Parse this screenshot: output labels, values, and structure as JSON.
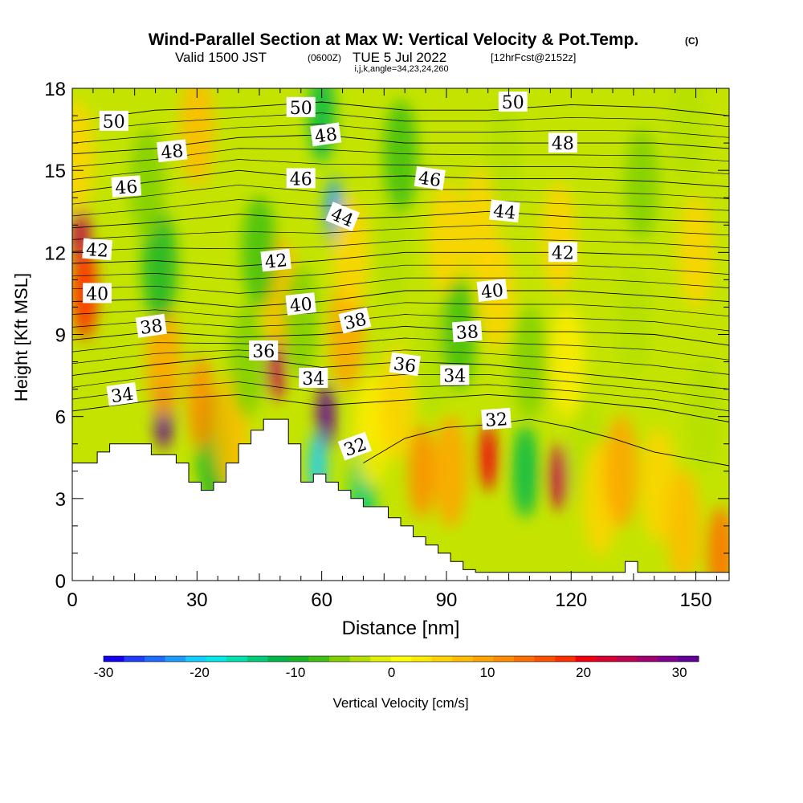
{
  "header": {
    "title": "Wind-Parallel Section at Max W: Vertical Velocity & Pot.Temp.",
    "copyright": "(C)",
    "valid_prefix": "Valid 1500 JST",
    "valid_utc": "(0600Z)",
    "valid_date": "TUE 5 Jul 2022",
    "forecast": "[12hrFcst@2152z]",
    "grid_info": "i,j,k,angle=34,23,24,260"
  },
  "chart_data": {
    "type": "heatmap",
    "xlabel": "Distance [nm]",
    "ylabel": "Height [Kft MSL]",
    "xlim": [
      0,
      158
    ],
    "ylim": [
      0,
      18
    ],
    "xticks": [
      0,
      30,
      60,
      90,
      120,
      150
    ],
    "yticks": [
      0,
      3,
      6,
      9,
      12,
      15,
      18
    ],
    "colorbar": {
      "label": "Vertical Velocity [cm/s]",
      "min": -30,
      "max": 32,
      "ticks": [
        -30,
        -20,
        -10,
        0,
        10,
        20,
        30
      ],
      "colors": [
        "#1400f0",
        "#1f3cff",
        "#1e6cff",
        "#1c9cff",
        "#14ccff",
        "#00e8e8",
        "#00e0b0",
        "#00cc7a",
        "#00b84a",
        "#18b428",
        "#40c010",
        "#80d000",
        "#b4e000",
        "#e0f000",
        "#ffff00",
        "#ffec00",
        "#ffd400",
        "#ffbc00",
        "#ffa400",
        "#ff8c00",
        "#ff6e00",
        "#ff5000",
        "#ff3000",
        "#f00010",
        "#d80030",
        "#c00050",
        "#a00070",
        "#800090",
        "#600098"
      ]
    },
    "velocity_cells": [
      {
        "x": 2,
        "y": 12.5,
        "w": 25
      },
      {
        "x": 3,
        "y": 10.5,
        "w": 18
      },
      {
        "x": 1,
        "y": 15.5,
        "w": 5
      },
      {
        "x": 22,
        "y": 6.0,
        "w": 30
      },
      {
        "x": 22,
        "y": 8.0,
        "w": 10
      },
      {
        "x": 21,
        "y": 11.5,
        "w": -10
      },
      {
        "x": 18,
        "y": 14.5,
        "w": -6
      },
      {
        "x": 30,
        "y": 16.5,
        "w": 8
      },
      {
        "x": 34,
        "y": 4.8,
        "w": -10
      },
      {
        "x": 31,
        "y": 6.5,
        "w": 12
      },
      {
        "x": 38,
        "y": 5.5,
        "w": 8
      },
      {
        "x": 42,
        "y": 8.0,
        "w": -6
      },
      {
        "x": 49,
        "y": 7.8,
        "w": 25
      },
      {
        "x": 50,
        "y": 10.5,
        "w": 8
      },
      {
        "x": 45,
        "y": 12.0,
        "w": -8
      },
      {
        "x": 55,
        "y": 9.5,
        "w": -5
      },
      {
        "x": 61,
        "y": 6.0,
        "w": 32
      },
      {
        "x": 59,
        "y": 4.2,
        "w": -20
      },
      {
        "x": 63,
        "y": 13.5,
        "w": -22
      },
      {
        "x": 60,
        "y": 17.0,
        "w": -12
      },
      {
        "x": 66,
        "y": 9.0,
        "w": 10
      },
      {
        "x": 67,
        "y": 12.0,
        "w": 6
      },
      {
        "x": 70,
        "y": 3.5,
        "w": -15
      },
      {
        "x": 72,
        "y": 5.5,
        "w": 4
      },
      {
        "x": 78,
        "y": 6.5,
        "w": 6
      },
      {
        "x": 77,
        "y": 12.0,
        "w": -4
      },
      {
        "x": 79,
        "y": 15.5,
        "w": -8
      },
      {
        "x": 84,
        "y": 4.0,
        "w": 12
      },
      {
        "x": 87,
        "y": 8.0,
        "w": -4
      },
      {
        "x": 91,
        "y": 4.0,
        "w": 10
      },
      {
        "x": 90,
        "y": 12.5,
        "w": 6
      },
      {
        "x": 93,
        "y": 9.0,
        "w": -8
      },
      {
        "x": 100,
        "y": 4.5,
        "w": 20
      },
      {
        "x": 102,
        "y": 10.5,
        "w": 6
      },
      {
        "x": 98,
        "y": 13.0,
        "w": 5
      },
      {
        "x": 104,
        "y": 15.5,
        "w": -4
      },
      {
        "x": 109,
        "y": 4.0,
        "w": -12
      },
      {
        "x": 110,
        "y": 8.0,
        "w": -6
      },
      {
        "x": 117,
        "y": 3.8,
        "w": 24
      },
      {
        "x": 117,
        "y": 12.5,
        "w": 5
      },
      {
        "x": 119,
        "y": 8.0,
        "w": 4
      },
      {
        "x": 124,
        "y": 4.5,
        "w": -4
      },
      {
        "x": 127,
        "y": 3.0,
        "w": 6
      },
      {
        "x": 132,
        "y": 4.0,
        "w": 9
      },
      {
        "x": 135,
        "y": 9.5,
        "w": -4
      },
      {
        "x": 137,
        "y": 14.5,
        "w": -6
      },
      {
        "x": 141,
        "y": 3.5,
        "w": 5
      },
      {
        "x": 147,
        "y": 2.0,
        "w": 7
      },
      {
        "x": 150,
        "y": 12.0,
        "w": 6
      },
      {
        "x": 152,
        "y": 6.0,
        "w": -4
      },
      {
        "x": 156,
        "y": 1.0,
        "w": 14
      },
      {
        "x": 148,
        "y": 16.5,
        "w": -3
      }
    ],
    "terrain": {
      "x": [
        0,
        6,
        6,
        9,
        9,
        19,
        19,
        25,
        25,
        28,
        28,
        31,
        31,
        34,
        34,
        37,
        37,
        40,
        40,
        43,
        43,
        46,
        46,
        52,
        52,
        55,
        55,
        58,
        58,
        61,
        61,
        64,
        64,
        67,
        67,
        70,
        70,
        73,
        73,
        76,
        76,
        79,
        79,
        82,
        82,
        85,
        85,
        88,
        88,
        91,
        91,
        94,
        94,
        97,
        97,
        100,
        100,
        103,
        103,
        106,
        106,
        109,
        109,
        112,
        112,
        115,
        115,
        118,
        118,
        121,
        121,
        124,
        124,
        127,
        127,
        130,
        130,
        133,
        133,
        136,
        136,
        139,
        139,
        158
      ],
      "y": [
        4.3,
        4.3,
        4.7,
        4.7,
        5.0,
        5.0,
        4.6,
        4.6,
        4.3,
        4.3,
        3.6,
        3.6,
        3.3,
        3.3,
        3.6,
        3.6,
        4.3,
        4.3,
        5.0,
        5.0,
        5.5,
        5.5,
        5.9,
        5.9,
        5.0,
        5.0,
        3.6,
        3.6,
        3.9,
        3.9,
        3.6,
        3.6,
        3.3,
        3.3,
        3.0,
        3.0,
        2.7,
        2.7,
        2.7,
        2.7,
        2.3,
        2.3,
        2.0,
        2.0,
        1.6,
        1.6,
        1.3,
        1.3,
        1.0,
        1.0,
        0.7,
        0.7,
        0.4,
        0.4,
        0.3,
        0.3,
        0.3,
        0.3,
        0.3,
        0.3,
        0.3,
        0.3,
        0.3,
        0.3,
        0.3,
        0.3,
        0.3,
        0.3,
        0.3,
        0.3,
        0.3,
        0.3,
        0.3,
        0.3,
        0.3,
        0.3,
        0.3,
        0.3,
        0.7,
        0.7,
        0.3,
        0.3,
        0.3,
        0.3
      ]
    },
    "isentropes": [
      {
        "label": "50",
        "x": [
          0,
          20,
          40,
          60,
          80,
          100,
          120,
          140,
          158
        ],
        "y": [
          16.8,
          17.2,
          17.3,
          17.5,
          17.2,
          17.2,
          17.4,
          17.3,
          17.0
        ]
      },
      {
        "label": "48",
        "x": [
          0,
          20,
          40,
          60,
          80,
          100,
          120,
          140,
          158
        ],
        "y": [
          15.6,
          15.8,
          16.2,
          16.3,
          16.0,
          16.0,
          16.0,
          16.0,
          15.8
        ]
      },
      {
        "label": "46",
        "x": [
          0,
          20,
          40,
          60,
          80,
          100,
          120,
          140,
          158
        ],
        "y": [
          14.2,
          14.6,
          15.0,
          14.7,
          14.8,
          14.7,
          14.7,
          14.6,
          14.4
        ]
      },
      {
        "label": "44",
        "x": [
          0,
          20,
          40,
          60,
          80,
          100,
          120,
          140,
          158
        ],
        "y": [
          12.9,
          13.1,
          13.4,
          13.2,
          13.3,
          13.5,
          13.3,
          13.2,
          13.1
        ]
      },
      {
        "label": "42",
        "x": [
          0,
          20,
          40,
          60,
          80,
          100,
          120,
          140,
          158
        ],
        "y": [
          11.6,
          11.7,
          11.5,
          11.7,
          12.0,
          12.0,
          12.0,
          11.9,
          11.7
        ]
      },
      {
        "label": "40",
        "x": [
          0,
          20,
          40,
          60,
          80,
          100,
          120,
          140,
          158
        ],
        "y": [
          10.2,
          10.3,
          10.0,
          10.2,
          10.6,
          10.6,
          10.6,
          10.4,
          10.2
        ]
      },
      {
        "label": "38",
        "x": [
          0,
          20,
          40,
          60,
          80,
          100,
          120,
          140,
          158
        ],
        "y": [
          8.8,
          9.1,
          8.9,
          9.0,
          9.3,
          9.1,
          9.1,
          9.0,
          8.6
        ]
      },
      {
        "label": "36",
        "x": [
          0,
          20,
          40,
          60,
          80,
          100,
          120,
          140,
          158
        ],
        "y": [
          7.5,
          7.9,
          8.2,
          7.8,
          8.0,
          7.9,
          7.6,
          7.3,
          7.0
        ]
      },
      {
        "label": "34",
        "x": [
          0,
          20,
          40,
          60,
          80,
          100,
          120,
          140,
          158
        ],
        "y": [
          6.2,
          6.6,
          6.8,
          6.4,
          6.6,
          6.8,
          6.6,
          6.3,
          5.8
        ]
      },
      {
        "label": "32",
        "x": [
          70,
          80,
          90,
          100,
          110,
          120,
          130,
          140,
          158
        ],
        "y": [
          4.3,
          5.2,
          5.6,
          5.7,
          5.9,
          5.6,
          5.2,
          4.7,
          4.2
        ]
      }
    ],
    "contour_labels": [
      {
        "text": "50",
        "x": 10,
        "y": 16.8,
        "angle": 0
      },
      {
        "text": "50",
        "x": 55,
        "y": 17.3,
        "angle": 0
      },
      {
        "text": "50",
        "x": 106,
        "y": 17.5,
        "angle": 0
      },
      {
        "text": "48",
        "x": 24,
        "y": 15.7,
        "angle": -6
      },
      {
        "text": "48",
        "x": 61,
        "y": 16.3,
        "angle": -8
      },
      {
        "text": "48",
        "x": 118,
        "y": 16.0,
        "angle": 0
      },
      {
        "text": "46",
        "x": 13,
        "y": 14.4,
        "angle": -4
      },
      {
        "text": "46",
        "x": 55,
        "y": 14.7,
        "angle": 0
      },
      {
        "text": "46",
        "x": 86,
        "y": 14.7,
        "angle": 8
      },
      {
        "text": "44",
        "x": 65,
        "y": 13.3,
        "angle": 22
      },
      {
        "text": "44",
        "x": 104,
        "y": 13.5,
        "angle": 6
      },
      {
        "text": "42",
        "x": 6,
        "y": 12.1,
        "angle": 4
      },
      {
        "text": "42",
        "x": 49,
        "y": 11.7,
        "angle": -6
      },
      {
        "text": "42",
        "x": 118,
        "y": 12.0,
        "angle": 0
      },
      {
        "text": "40",
        "x": 6,
        "y": 10.5,
        "angle": 0
      },
      {
        "text": "40",
        "x": 55,
        "y": 10.1,
        "angle": -6
      },
      {
        "text": "40",
        "x": 101,
        "y": 10.6,
        "angle": -6
      },
      {
        "text": "38",
        "x": 19,
        "y": 9.3,
        "angle": -8
      },
      {
        "text": "38",
        "x": 68,
        "y": 9.5,
        "angle": -14
      },
      {
        "text": "38",
        "x": 95,
        "y": 9.1,
        "angle": -4
      },
      {
        "text": "36",
        "x": 46,
        "y": 8.4,
        "angle": 0
      },
      {
        "text": "36",
        "x": 80,
        "y": 7.9,
        "angle": 8
      },
      {
        "text": "34",
        "x": 12,
        "y": 6.8,
        "angle": -8
      },
      {
        "text": "34",
        "x": 58,
        "y": 7.4,
        "angle": 0
      },
      {
        "text": "34",
        "x": 92,
        "y": 7.5,
        "angle": 0
      },
      {
        "text": "32",
        "x": 68,
        "y": 4.9,
        "angle": -20
      },
      {
        "text": "32",
        "x": 102,
        "y": 5.9,
        "angle": -4
      }
    ]
  }
}
